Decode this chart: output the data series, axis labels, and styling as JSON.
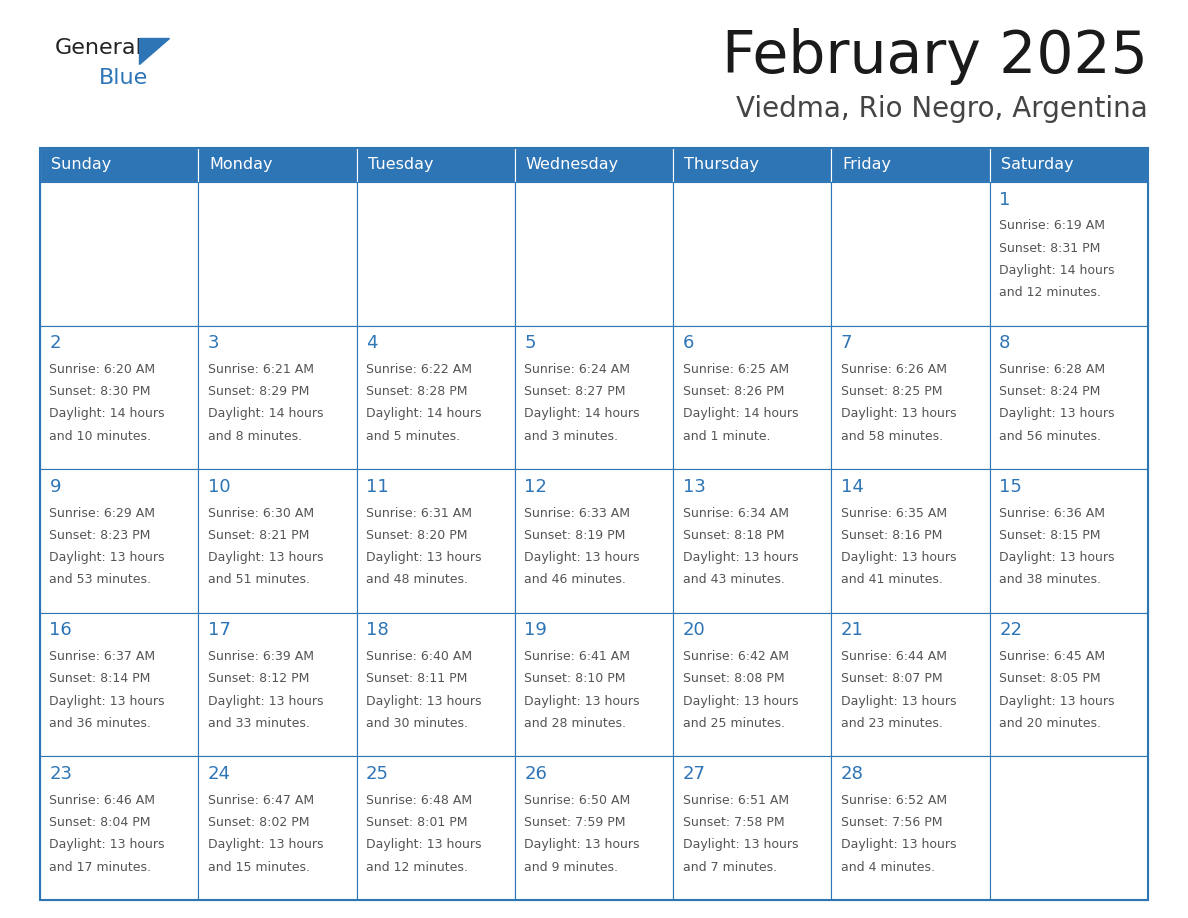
{
  "title": "February 2025",
  "subtitle": "Viedma, Rio Negro, Argentina",
  "header_bg": "#2E75B6",
  "header_text_color": "#FFFFFF",
  "cell_bg": "#FFFFFF",
  "cell_border_color": "#2E75B6",
  "day_number_color": "#2E75B6",
  "info_text_color": "#555555",
  "days_of_week": [
    "Sunday",
    "Monday",
    "Tuesday",
    "Wednesday",
    "Thursday",
    "Friday",
    "Saturday"
  ],
  "calendar_data": [
    [
      null,
      null,
      null,
      null,
      null,
      null,
      {
        "day": 1,
        "sunrise": "6:19 AM",
        "sunset": "8:31 PM",
        "daylight1": "14 hours",
        "daylight2": "and 12 minutes."
      }
    ],
    [
      {
        "day": 2,
        "sunrise": "6:20 AM",
        "sunset": "8:30 PM",
        "daylight1": "14 hours",
        "daylight2": "and 10 minutes."
      },
      {
        "day": 3,
        "sunrise": "6:21 AM",
        "sunset": "8:29 PM",
        "daylight1": "14 hours",
        "daylight2": "and 8 minutes."
      },
      {
        "day": 4,
        "sunrise": "6:22 AM",
        "sunset": "8:28 PM",
        "daylight1": "14 hours",
        "daylight2": "and 5 minutes."
      },
      {
        "day": 5,
        "sunrise": "6:24 AM",
        "sunset": "8:27 PM",
        "daylight1": "14 hours",
        "daylight2": "and 3 minutes."
      },
      {
        "day": 6,
        "sunrise": "6:25 AM",
        "sunset": "8:26 PM",
        "daylight1": "14 hours",
        "daylight2": "and 1 minute."
      },
      {
        "day": 7,
        "sunrise": "6:26 AM",
        "sunset": "8:25 PM",
        "daylight1": "13 hours",
        "daylight2": "and 58 minutes."
      },
      {
        "day": 8,
        "sunrise": "6:28 AM",
        "sunset": "8:24 PM",
        "daylight1": "13 hours",
        "daylight2": "and 56 minutes."
      }
    ],
    [
      {
        "day": 9,
        "sunrise": "6:29 AM",
        "sunset": "8:23 PM",
        "daylight1": "13 hours",
        "daylight2": "and 53 minutes."
      },
      {
        "day": 10,
        "sunrise": "6:30 AM",
        "sunset": "8:21 PM",
        "daylight1": "13 hours",
        "daylight2": "and 51 minutes."
      },
      {
        "day": 11,
        "sunrise": "6:31 AM",
        "sunset": "8:20 PM",
        "daylight1": "13 hours",
        "daylight2": "and 48 minutes."
      },
      {
        "day": 12,
        "sunrise": "6:33 AM",
        "sunset": "8:19 PM",
        "daylight1": "13 hours",
        "daylight2": "and 46 minutes."
      },
      {
        "day": 13,
        "sunrise": "6:34 AM",
        "sunset": "8:18 PM",
        "daylight1": "13 hours",
        "daylight2": "and 43 minutes."
      },
      {
        "day": 14,
        "sunrise": "6:35 AM",
        "sunset": "8:16 PM",
        "daylight1": "13 hours",
        "daylight2": "and 41 minutes."
      },
      {
        "day": 15,
        "sunrise": "6:36 AM",
        "sunset": "8:15 PM",
        "daylight1": "13 hours",
        "daylight2": "and 38 minutes."
      }
    ],
    [
      {
        "day": 16,
        "sunrise": "6:37 AM",
        "sunset": "8:14 PM",
        "daylight1": "13 hours",
        "daylight2": "and 36 minutes."
      },
      {
        "day": 17,
        "sunrise": "6:39 AM",
        "sunset": "8:12 PM",
        "daylight1": "13 hours",
        "daylight2": "and 33 minutes."
      },
      {
        "day": 18,
        "sunrise": "6:40 AM",
        "sunset": "8:11 PM",
        "daylight1": "13 hours",
        "daylight2": "and 30 minutes."
      },
      {
        "day": 19,
        "sunrise": "6:41 AM",
        "sunset": "8:10 PM",
        "daylight1": "13 hours",
        "daylight2": "and 28 minutes."
      },
      {
        "day": 20,
        "sunrise": "6:42 AM",
        "sunset": "8:08 PM",
        "daylight1": "13 hours",
        "daylight2": "and 25 minutes."
      },
      {
        "day": 21,
        "sunrise": "6:44 AM",
        "sunset": "8:07 PM",
        "daylight1": "13 hours",
        "daylight2": "and 23 minutes."
      },
      {
        "day": 22,
        "sunrise": "6:45 AM",
        "sunset": "8:05 PM",
        "daylight1": "13 hours",
        "daylight2": "and 20 minutes."
      }
    ],
    [
      {
        "day": 23,
        "sunrise": "6:46 AM",
        "sunset": "8:04 PM",
        "daylight1": "13 hours",
        "daylight2": "and 17 minutes."
      },
      {
        "day": 24,
        "sunrise": "6:47 AM",
        "sunset": "8:02 PM",
        "daylight1": "13 hours",
        "daylight2": "and 15 minutes."
      },
      {
        "day": 25,
        "sunrise": "6:48 AM",
        "sunset": "8:01 PM",
        "daylight1": "13 hours",
        "daylight2": "and 12 minutes."
      },
      {
        "day": 26,
        "sunrise": "6:50 AM",
        "sunset": "7:59 PM",
        "daylight1": "13 hours",
        "daylight2": "and 9 minutes."
      },
      {
        "day": 27,
        "sunrise": "6:51 AM",
        "sunset": "7:58 PM",
        "daylight1": "13 hours",
        "daylight2": "and 7 minutes."
      },
      {
        "day": 28,
        "sunrise": "6:52 AM",
        "sunset": "7:56 PM",
        "daylight1": "13 hours",
        "daylight2": "and 4 minutes."
      },
      null
    ]
  ],
  "fig_width": 11.88,
  "fig_height": 9.18,
  "dpi": 100
}
